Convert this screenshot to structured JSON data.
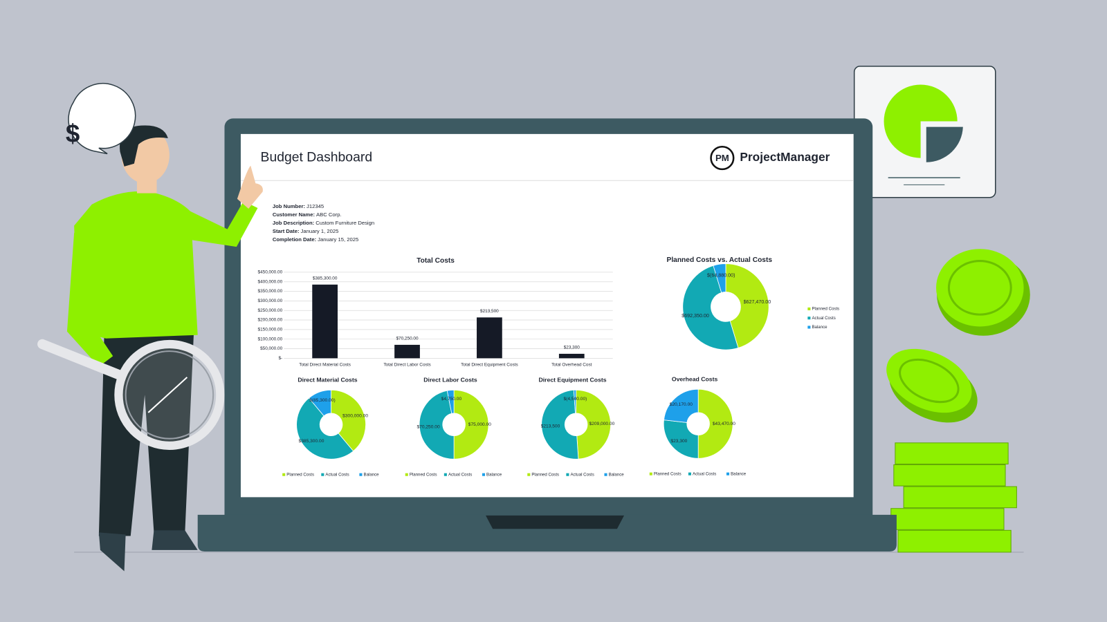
{
  "illustration": {
    "bubble_text": "$"
  },
  "header": {
    "title": "Budget Dashboard",
    "logo": "PM",
    "brand": "ProjectManager"
  },
  "job_info": [
    {
      "label": "Job Number:",
      "value": "J12345"
    },
    {
      "label": "Customer Name:",
      "value": "ABC Corp."
    },
    {
      "label": "Job Description:",
      "value": "Custom Furniture Design"
    },
    {
      "label": "Start Date:",
      "value": "January 1, 2025"
    },
    {
      "label": "Completion Date:",
      "value": "January 15, 2025"
    }
  ],
  "chart_data": [
    {
      "type": "bar",
      "title": "Total Costs",
      "categories": [
        "Total Direct Material Costs",
        "Total Direct Labor Costs",
        "Total Direct Equipment Costs",
        "Total Overhead Cost"
      ],
      "values": [
        385300,
        70250,
        213500,
        23300
      ],
      "value_labels": [
        "$385,300.00",
        "$70,250.00",
        "$213,500",
        "$23,300"
      ],
      "color": "#151a26",
      "grid": true,
      "ylim": [
        0,
        450000
      ],
      "yticks": [
        {
          "value": 0,
          "label": "$-"
        },
        {
          "value": 50000,
          "label": "$50,000.00"
        },
        {
          "value": 100000,
          "label": "$100,000.00"
        },
        {
          "value": 150000,
          "label": "$150,000.00"
        },
        {
          "value": 200000,
          "label": "$200,000.00"
        },
        {
          "value": 250000,
          "label": "$250,000.00"
        },
        {
          "value": 300000,
          "label": "$300,000.00"
        },
        {
          "value": 350000,
          "label": "$350,000.00"
        },
        {
          "value": 400000,
          "label": "$400,000.00"
        },
        {
          "value": 450000,
          "label": "$450,000.00"
        }
      ]
    },
    {
      "type": "donut",
      "title": "Planned Costs vs. Actual Costs",
      "categories": [
        "Planned Costs",
        "Actual Costs",
        "Balance"
      ],
      "values": [
        627470,
        692350,
        -64880
      ],
      "value_labels": [
        "$627,470.00",
        "$692,350.00",
        "$(64,880.00)"
      ],
      "colors": [
        "#b2ea12",
        "#12a9b4",
        "#1ea0ea"
      ],
      "legend": "right"
    },
    {
      "type": "donut",
      "title": "Direct Material Costs",
      "categories": [
        "Planned Costs",
        "Actual Costs",
        "Balance"
      ],
      "values": [
        300000,
        385300,
        -85300
      ],
      "value_labels": [
        "$300,000.00",
        "$385,300.00",
        "$(85,300.00)"
      ],
      "colors": [
        "#b2ea12",
        "#12a9b4",
        "#1ea0ea"
      ],
      "legend": "bottom"
    },
    {
      "type": "donut",
      "title": "Direct Labor Costs",
      "categories": [
        "Planned Costs",
        "Actual Costs",
        "Balance"
      ],
      "values": [
        75000,
        70250,
        4750
      ],
      "value_labels": [
        "$75,000.00",
        "$70,250.00",
        "$4,750.00"
      ],
      "colors": [
        "#b2ea12",
        "#12a9b4",
        "#1ea0ea"
      ],
      "legend": "bottom"
    },
    {
      "type": "donut",
      "title": "Direct Equipment Costs",
      "categories": [
        "Planned Costs",
        "Actual Costs",
        "Balance"
      ],
      "values": [
        209000,
        213500,
        -4500
      ],
      "value_labels": [
        "$209,000.00",
        "$213,500",
        "$(4,500.00)"
      ],
      "colors": [
        "#b2ea12",
        "#12a9b4",
        "#1ea0ea"
      ],
      "legend": "bottom"
    },
    {
      "type": "donut",
      "title": "Overhead Costs",
      "categories": [
        "Planned Costs",
        "Actual Costs",
        "Balance"
      ],
      "values": [
        43470,
        23300,
        20170
      ],
      "value_labels": [
        "$43,470.00",
        "$23,300",
        "$20,170.00"
      ],
      "colors": [
        "#b2ea12",
        "#12a9b4",
        "#1ea0ea"
      ],
      "legend": "bottom"
    }
  ]
}
